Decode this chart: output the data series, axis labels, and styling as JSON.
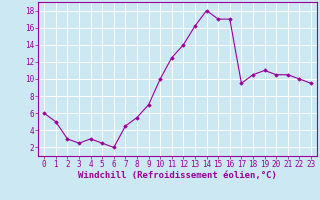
{
  "x": [
    0,
    1,
    2,
    3,
    4,
    5,
    6,
    7,
    8,
    9,
    10,
    11,
    12,
    13,
    14,
    15,
    16,
    17,
    18,
    19,
    20,
    21,
    22,
    23
  ],
  "y": [
    6,
    5,
    3,
    2.5,
    3,
    2.5,
    2,
    4.5,
    5.5,
    7,
    10,
    12.5,
    14,
    16.2,
    18,
    17,
    17,
    9.5,
    10.5,
    11,
    10.5,
    10.5,
    10,
    9.5
  ],
  "line_color": "#990099",
  "marker": "D",
  "marker_size": 1.8,
  "line_width": 0.8,
  "xlabel": "Windchill (Refroidissement éolien,°C)",
  "xlabel_fontsize": 6.5,
  "xlabel_color": "#990099",
  "xtick_labels": [
    "0",
    "1",
    "2",
    "3",
    "4",
    "5",
    "6",
    "7",
    "8",
    "9",
    "10",
    "11",
    "12",
    "13",
    "14",
    "15",
    "16",
    "17",
    "18",
    "19",
    "20",
    "21",
    "22",
    "23"
  ],
  "ytick_labels": [
    "2",
    "4",
    "6",
    "8",
    "10",
    "12",
    "14",
    "16",
    "18"
  ],
  "yticks": [
    2,
    4,
    6,
    8,
    10,
    12,
    14,
    16,
    18
  ],
  "ylim": [
    1,
    19
  ],
  "xlim": [
    -0.5,
    23.5
  ],
  "bg_color": "#cce9f3",
  "grid_color": "#ffffff",
  "tick_color": "#990099",
  "tick_fontsize": 5.5,
  "spine_color": "#990099"
}
